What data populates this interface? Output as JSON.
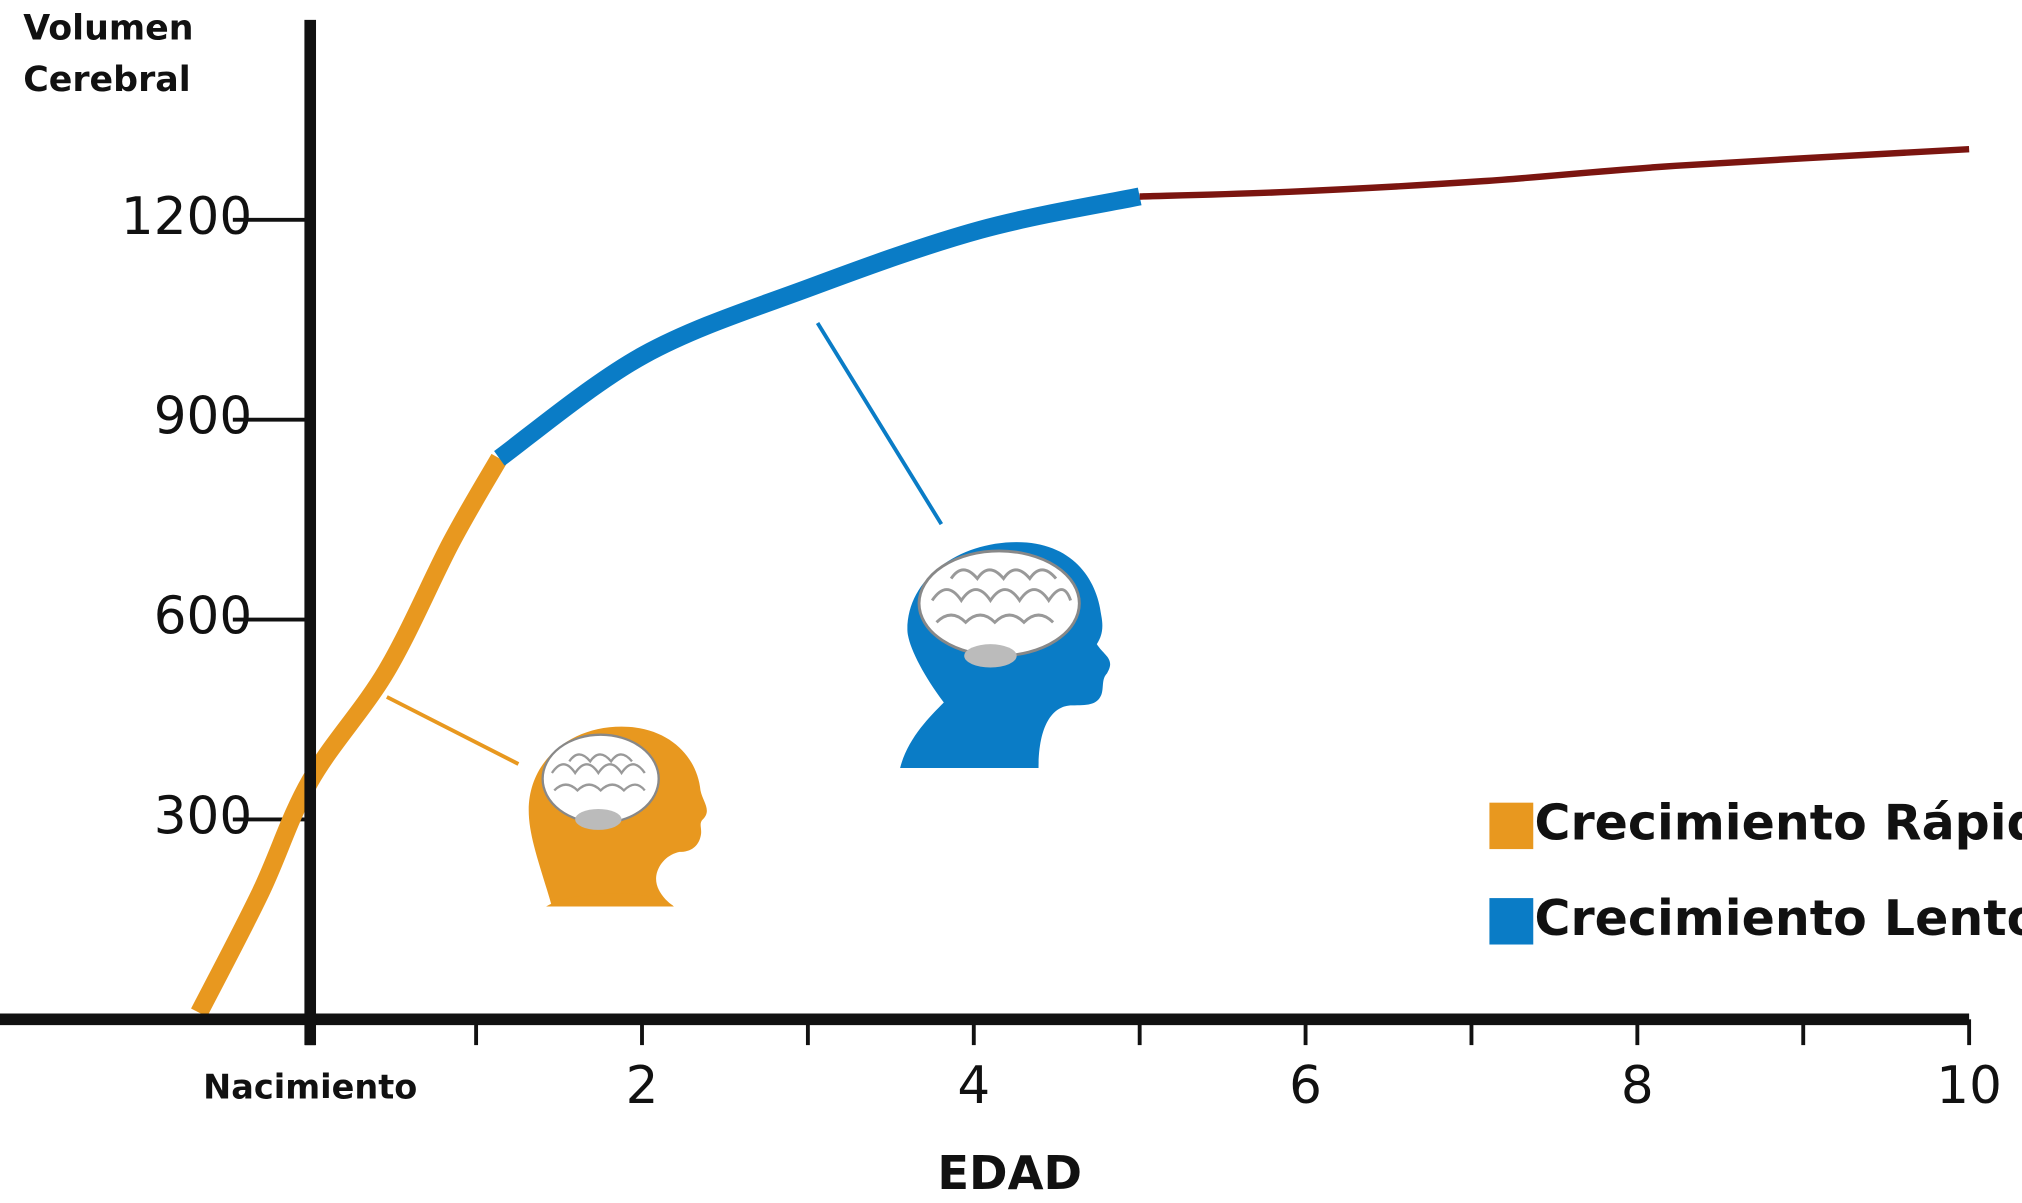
{
  "chart_data": {
    "type": "line",
    "y_label": "Volumen Cerebral",
    "x_label": "EDAD",
    "xlim": [
      -1.87,
      10
    ],
    "ylim": [
      0,
      1500
    ],
    "xticks": [
      {
        "value": 0,
        "label": "Nacimiento"
      },
      2,
      4,
      6,
      8,
      10
    ],
    "xminor_ticks": [
      1,
      3,
      5,
      7,
      9
    ],
    "yticks": [
      300,
      600,
      900,
      1200
    ],
    "grid": false,
    "legend": "lower right",
    "series": [
      {
        "name": "Crecimiento Rápido",
        "color": "#e8981f",
        "x": [
          -0.67,
          -0.3,
          0,
          0.46,
          0.85,
          1.14
        ],
        "values": [
          10,
          190,
          358,
          523,
          716,
          842
        ]
      },
      {
        "name": "Crecimiento Lento",
        "color": "#0a7cc6",
        "x": [
          1.14,
          2.01,
          3.02,
          4.04,
          5.0
        ],
        "values": [
          842,
          997,
          1099,
          1185,
          1235
        ]
      },
      {
        "color": "#7b1510",
        "x": [
          5.0,
          5.9,
          7.07,
          8.23,
          10
        ],
        "values": [
          1235,
          1242,
          1258,
          1281,
          1306
        ]
      }
    ]
  }
}
